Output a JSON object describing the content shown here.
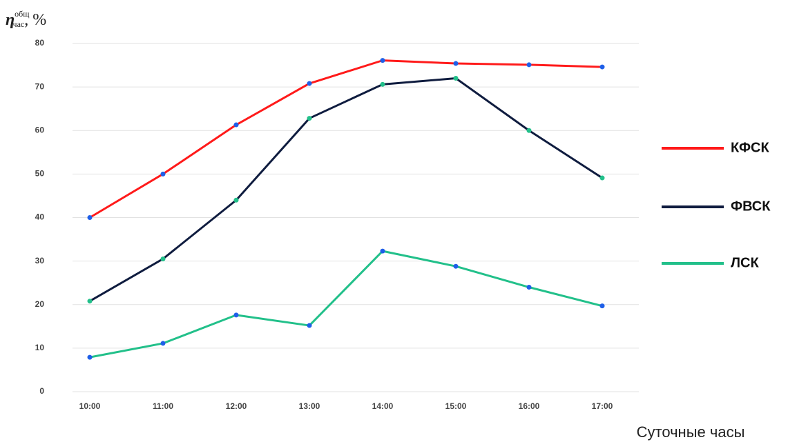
{
  "chart_data": {
    "type": "line",
    "y_label": {
      "symbol": "η",
      "superscript": "общ",
      "subscript": "час",
      "unit": ", %"
    },
    "x_label": "Суточные часы",
    "categories": [
      "10:00",
      "11:00",
      "12:00",
      "13:00",
      "14:00",
      "15:00",
      "16:00",
      "17:00"
    ],
    "series": [
      {
        "name": "КФСК",
        "color": "#ff1a1a",
        "marker_color": "#1f5fe8",
        "values": [
          40,
          50,
          61.3,
          70.8,
          76.1,
          75.4,
          75.1,
          74.6
        ]
      },
      {
        "name": "ФВСК",
        "color": "#0f1c3f",
        "marker_color": "#22c08a",
        "values": [
          20.8,
          30.5,
          44,
          62.8,
          70.6,
          72,
          60,
          49.1
        ]
      },
      {
        "name": "ЛСК",
        "color": "#22c08a",
        "marker_color": "#1f5fe8",
        "values": [
          7.9,
          11.1,
          17.6,
          15.2,
          32.3,
          28.8,
          24,
          19.7
        ]
      }
    ],
    "ylim": [
      0,
      80
    ],
    "yticks": [
      0,
      10,
      20,
      30,
      40,
      50,
      60,
      70,
      80
    ],
    "grid": true,
    "legend": "right"
  }
}
